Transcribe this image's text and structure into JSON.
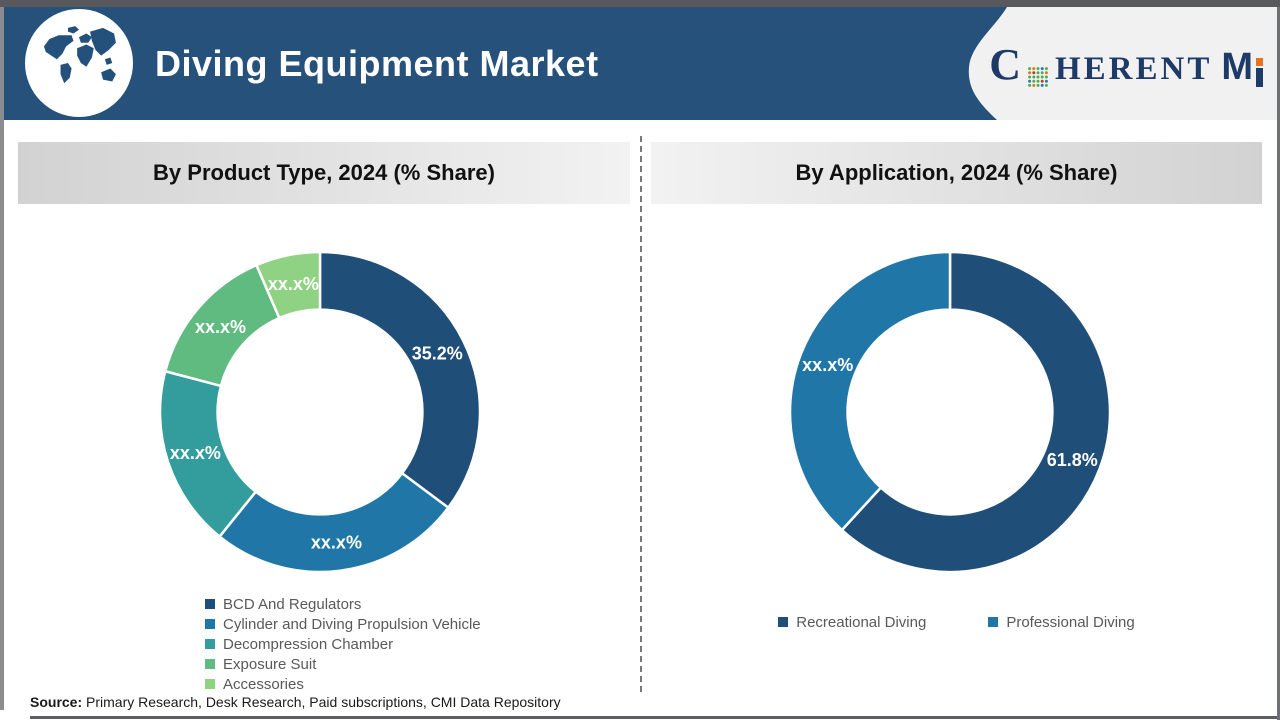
{
  "colors": {
    "header_bg": "#25517B",
    "logo_navy": "#1E3A66",
    "accent_orange": "#E8731E",
    "legend_text": "#595959",
    "banner_dark": "#D2D2D2",
    "banner_light": "#F2F2F2",
    "swoosh_bg": "#F1F1F2",
    "frame_gray": "#58595C",
    "divider_gray": "#7A7A7A",
    "title_text": "#FFFFFF",
    "banner_text": "#111111",
    "source_text": "#1A1A1A"
  },
  "header": {
    "title": "Diving Equipment Market",
    "brand": {
      "c": "C",
      "herent": "HERENT",
      "m": "M"
    }
  },
  "chart_data": [
    {
      "type": "pie",
      "subtype": "donut",
      "title": "By Product Type, 2024 (% Share)",
      "labels": [
        "BCD And Regulators",
        "Cylinder and Diving Propulsion Vehicle",
        "Decompression Chamber",
        "Exposure Suit",
        "Accessories"
      ],
      "values": [
        35.2,
        25.6,
        18.3,
        14.4,
        6.5
      ],
      "display_labels": [
        "35.2%",
        "xx.x%",
        "xx.x%",
        "xx.x%",
        "xx.x%"
      ],
      "colors": [
        "#1F4E79",
        "#2076A7",
        "#339C9C",
        "#60BB80",
        "#90D283"
      ],
      "start_angle_deg": 0,
      "direction": "clockwise",
      "donut_hole_ratio": 0.64,
      "legend_position": "bottom-vertical"
    },
    {
      "type": "pie",
      "subtype": "donut",
      "title": "By Application, 2024 (% Share)",
      "labels": [
        "Recreational Diving",
        "Professional Diving"
      ],
      "values": [
        61.8,
        38.2
      ],
      "display_labels": [
        "61.8%",
        "xx.x%"
      ],
      "colors": [
        "#1F4E79",
        "#2076A7"
      ],
      "start_angle_deg": 0,
      "direction": "clockwise",
      "donut_hole_ratio": 0.64,
      "legend_position": "bottom-horizontal"
    }
  ],
  "footer": {
    "source_label": "Source:",
    "source_text": " Primary Research, Desk Research, Paid subscriptions, CMI Data Repository"
  }
}
